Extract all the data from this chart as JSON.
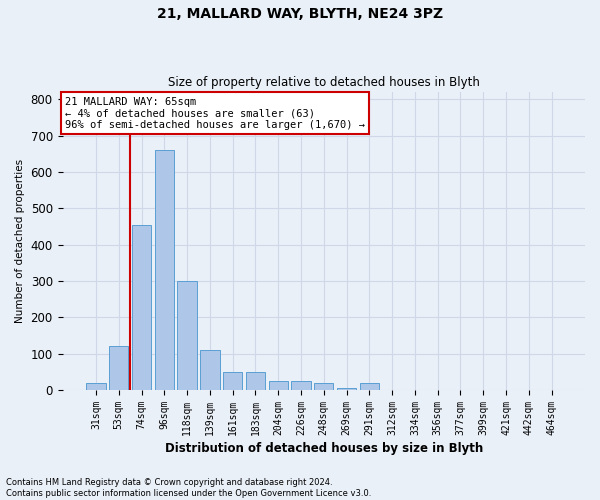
{
  "title_line1": "21, MALLARD WAY, BLYTH, NE24 3PZ",
  "title_line2": "Size of property relative to detached houses in Blyth",
  "xlabel": "Distribution of detached houses by size in Blyth",
  "ylabel": "Number of detached properties",
  "footnote": "Contains HM Land Registry data © Crown copyright and database right 2024.\nContains public sector information licensed under the Open Government Licence v3.0.",
  "bar_labels": [
    "31sqm",
    "53sqm",
    "74sqm",
    "96sqm",
    "118sqm",
    "139sqm",
    "161sqm",
    "183sqm",
    "204sqm",
    "226sqm",
    "248sqm",
    "269sqm",
    "291sqm",
    "312sqm",
    "334sqm",
    "356sqm",
    "377sqm",
    "399sqm",
    "421sqm",
    "442sqm",
    "464sqm"
  ],
  "bar_values": [
    20,
    120,
    455,
    660,
    300,
    110,
    50,
    50,
    25,
    25,
    20,
    5,
    20,
    0,
    0,
    0,
    0,
    0,
    0,
    0,
    0
  ],
  "bar_color": "#aec6e8",
  "bar_edge_color": "#5a9fd4",
  "grid_color": "#d0d8e8",
  "background_color": "#eaf0f8",
  "vline_color": "#cc0000",
  "vline_pos": 1.5,
  "annotation_text": "21 MALLARD WAY: 65sqm\n← 4% of detached houses are smaller (63)\n96% of semi-detached houses are larger (1,670) →",
  "annotation_box_color": "#ffffff",
  "annotation_box_edge": "#cc0000",
  "ylim": [
    0,
    820
  ],
  "yticks": [
    0,
    100,
    200,
    300,
    400,
    500,
    600,
    700,
    800
  ]
}
